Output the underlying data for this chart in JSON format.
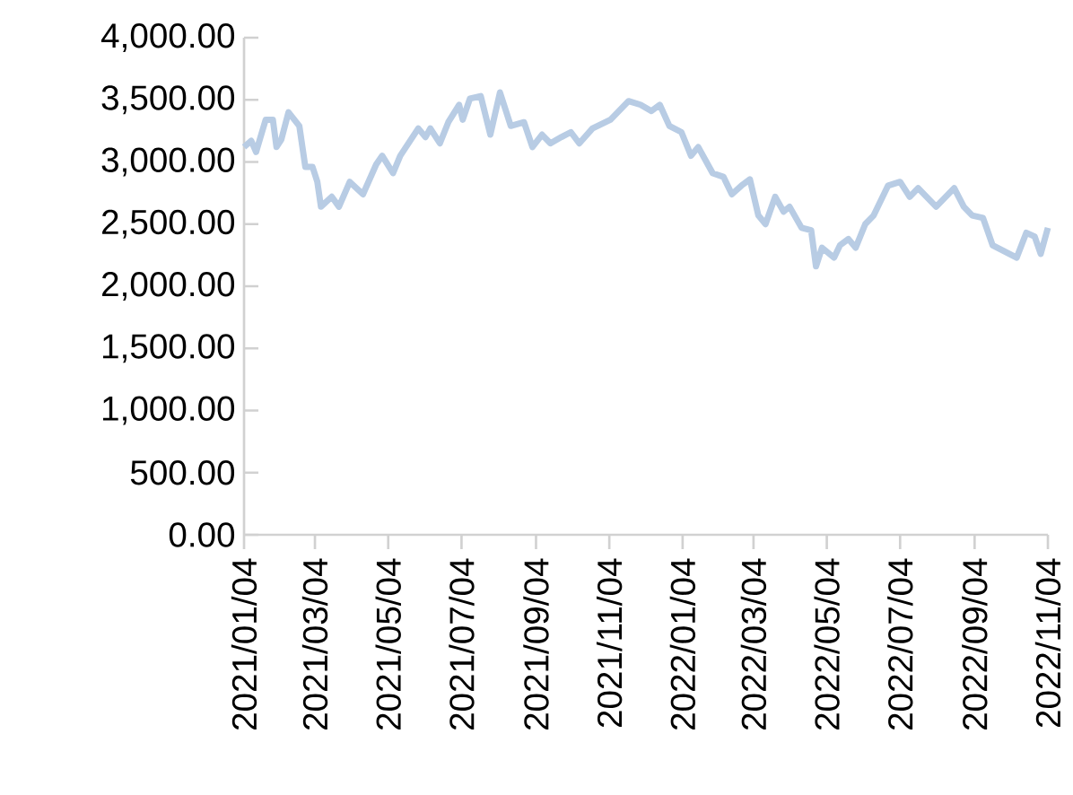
{
  "chart_data": {
    "type": "line",
    "xlim": [
      "2021-01-04",
      "2022-11-04"
    ],
    "ylim": [
      0,
      4000
    ],
    "xticks": [
      {
        "value": "2021-01-04",
        "label": "2021/01/04"
      },
      {
        "value": "2021-03-04",
        "label": "2021/03/04"
      },
      {
        "value": "2021-05-04",
        "label": "2021/05/04"
      },
      {
        "value": "2021-07-04",
        "label": "2021/07/04"
      },
      {
        "value": "2021-09-04",
        "label": "2021/09/04"
      },
      {
        "value": "2021-11-04",
        "label": "2021/11/04"
      },
      {
        "value": "2022-01-04",
        "label": "2022/01/04"
      },
      {
        "value": "2022-03-04",
        "label": "2022/03/04"
      },
      {
        "value": "2022-05-04",
        "label": "2022/05/04"
      },
      {
        "value": "2022-07-04",
        "label": "2022/07/04"
      },
      {
        "value": "2022-09-04",
        "label": "2022/09/04"
      },
      {
        "value": "2022-11-04",
        "label": "2022/11/04"
      }
    ],
    "yticks": [
      {
        "value": 0,
        "label": "0.00"
      },
      {
        "value": 500,
        "label": "500.00"
      },
      {
        "value": 1000,
        "label": "1,000.00"
      },
      {
        "value": 1500,
        "label": "1,500.00"
      },
      {
        "value": 2000,
        "label": "2,000.00"
      },
      {
        "value": 2500,
        "label": "2,500.00"
      },
      {
        "value": 3000,
        "label": "3,000.00"
      },
      {
        "value": 3500,
        "label": "3,500.00"
      },
      {
        "value": 4000,
        "label": "4,000.00"
      }
    ],
    "grid": false,
    "series": [
      {
        "color": "#b8cce4",
        "x": [
          "2021-01-04",
          "2021-01-10",
          "2021-01-14",
          "2021-01-22",
          "2021-01-28",
          "2021-01-31",
          "2021-02-04",
          "2021-02-10",
          "2021-02-19",
          "2021-02-24",
          "2021-03-02",
          "2021-03-06",
          "2021-03-09",
          "2021-03-18",
          "2021-03-24",
          "2021-04-02",
          "2021-04-13",
          "2021-04-24",
          "2021-04-29",
          "2021-05-08",
          "2021-05-14",
          "2021-05-29",
          "2021-06-04",
          "2021-06-08",
          "2021-06-16",
          "2021-06-23",
          "2021-07-02",
          "2021-07-05",
          "2021-07-11",
          "2021-07-20",
          "2021-07-28",
          "2021-08-05",
          "2021-08-14",
          "2021-08-25",
          "2021-09-01",
          "2021-09-09",
          "2021-09-16",
          "2021-09-25",
          "2021-10-03",
          "2021-10-10",
          "2021-10-21",
          "2021-11-05",
          "2021-11-20",
          "2021-11-30",
          "2021-12-09",
          "2021-12-16",
          "2021-12-24",
          "2022-01-03",
          "2022-01-11",
          "2022-01-17",
          "2022-01-29",
          "2022-02-07",
          "2022-02-14",
          "2022-02-22",
          "2022-03-01",
          "2022-03-08",
          "2022-03-14",
          "2022-03-22",
          "2022-03-29",
          "2022-04-03",
          "2022-04-13",
          "2022-04-21",
          "2022-04-25",
          "2022-04-30",
          "2022-05-10",
          "2022-05-15",
          "2022-05-22",
          "2022-05-28",
          "2022-06-05",
          "2022-06-12",
          "2022-06-24",
          "2022-07-04",
          "2022-07-12",
          "2022-07-19",
          "2022-08-03",
          "2022-08-18",
          "2022-08-26",
          "2022-09-02",
          "2022-09-11",
          "2022-09-19",
          "2022-09-29",
          "2022-10-09",
          "2022-10-17",
          "2022-10-24",
          "2022-10-29",
          "2022-11-04"
        ],
        "values": [
          3120,
          3170,
          3080,
          3340,
          3340,
          3120,
          3180,
          3400,
          3290,
          2960,
          2960,
          2840,
          2640,
          2720,
          2640,
          2840,
          2740,
          2980,
          3050,
          2910,
          3050,
          3270,
          3200,
          3270,
          3150,
          3320,
          3460,
          3340,
          3510,
          3530,
          3220,
          3560,
          3290,
          3320,
          3120,
          3220,
          3150,
          3200,
          3240,
          3150,
          3270,
          3340,
          3490,
          3460,
          3410,
          3460,
          3290,
          3240,
          3050,
          3120,
          2910,
          2880,
          2740,
          2810,
          2860,
          2570,
          2500,
          2720,
          2600,
          2640,
          2470,
          2450,
          2160,
          2310,
          2230,
          2330,
          2380,
          2310,
          2500,
          2570,
          2810,
          2840,
          2720,
          2790,
          2640,
          2790,
          2640,
          2570,
          2550,
          2330,
          2280,
          2230,
          2430,
          2400,
          2260,
          2470
        ]
      }
    ]
  }
}
